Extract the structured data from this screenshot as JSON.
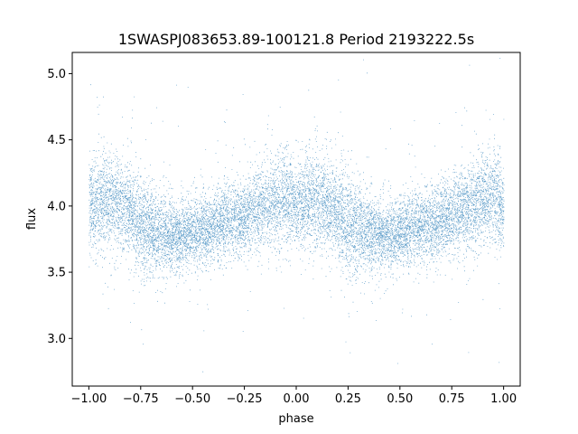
{
  "chart_data": {
    "type": "scatter",
    "title": "1SWASPJ083653.89-100121.8 Period 2193222.5s",
    "xlabel": "phase",
    "ylabel": "flux",
    "xlim": [
      -1.08,
      1.08
    ],
    "ylim": [
      2.64,
      5.16
    ],
    "xticks": [
      -1.0,
      -0.75,
      -0.5,
      -0.25,
      0.0,
      0.25,
      0.5,
      0.75,
      1.0
    ],
    "xtick_labels": [
      "−1.00",
      "−0.75",
      "−0.50",
      "−0.25",
      "0.00",
      "0.25",
      "0.50",
      "0.75",
      "1.00"
    ],
    "yticks": [
      3.0,
      3.5,
      4.0,
      4.5,
      5.0
    ],
    "ytick_labels": [
      "3.0",
      "3.5",
      "4.0",
      "4.5",
      "5.0"
    ],
    "grid": false,
    "legend": "none",
    "series": [
      {
        "color": "#1f77b4",
        "profile": {
          "phase": [
            0.0,
            0.05,
            0.1,
            0.15,
            0.2,
            0.25,
            0.3,
            0.35,
            0.4,
            0.45,
            0.5,
            0.55,
            0.6,
            0.65,
            0.7,
            0.75,
            0.8,
            0.85,
            0.9,
            0.95,
            1.0
          ],
          "flux_median": [
            3.98,
            4.05,
            4.05,
            4.02,
            3.95,
            3.85,
            3.82,
            3.8,
            3.78,
            3.78,
            3.8,
            3.82,
            3.85,
            3.88,
            3.9,
            3.93,
            3.97,
            4.0,
            4.05,
            4.08,
            3.98
          ],
          "flux_scatter": [
            0.16,
            0.18,
            0.18,
            0.17,
            0.17,
            0.2,
            0.17,
            0.14,
            0.13,
            0.13,
            0.13,
            0.13,
            0.14,
            0.14,
            0.14,
            0.14,
            0.15,
            0.16,
            0.17,
            0.18,
            0.16
          ]
        },
        "phase_range": [
          -1.0,
          1.0
        ],
        "approx_points": 14000
      }
    ]
  }
}
